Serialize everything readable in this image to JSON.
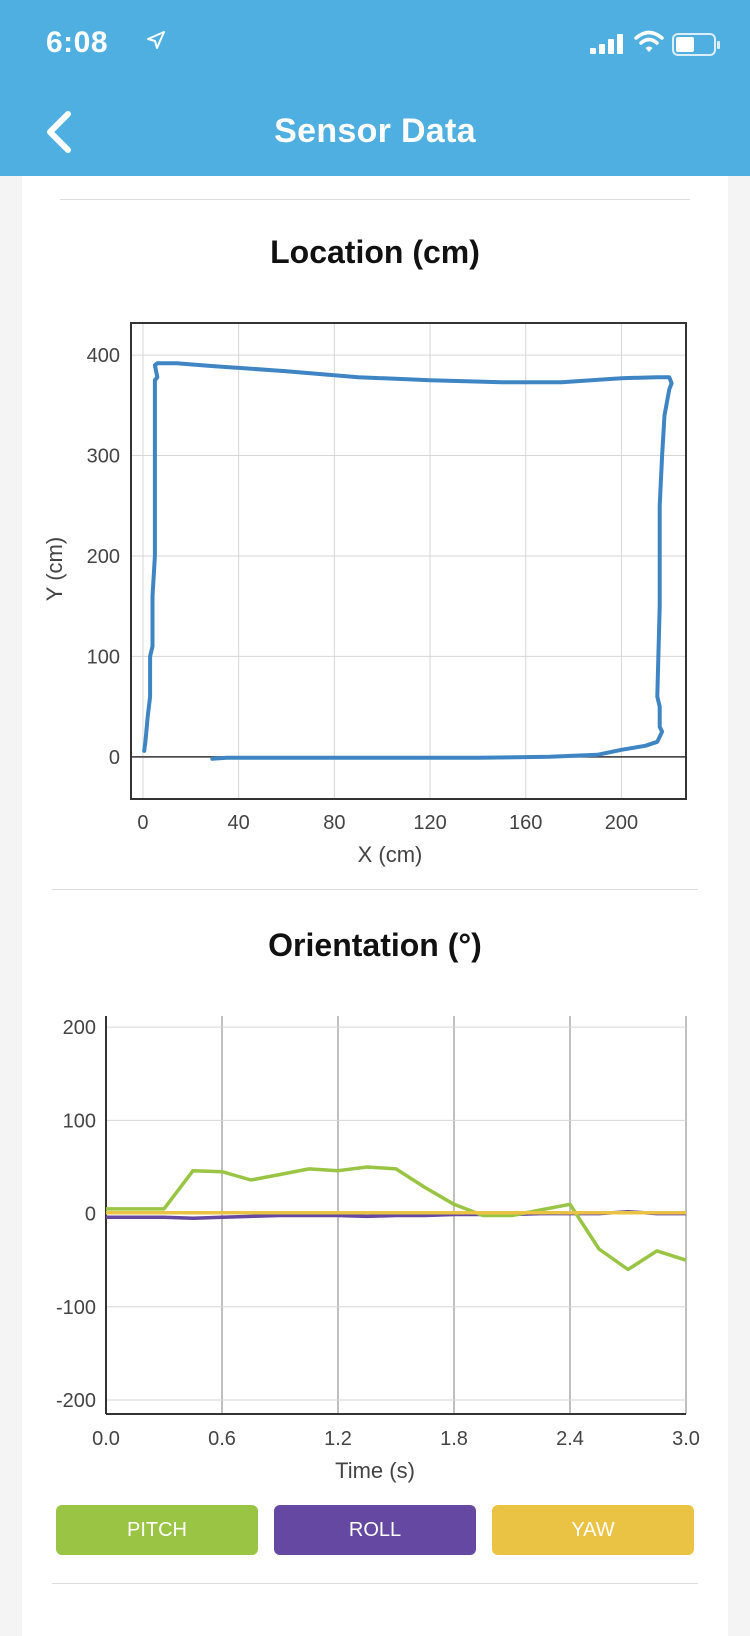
{
  "status_bar": {
    "time": "6:08",
    "icons": [
      "location-arrow-icon",
      "signal-icon",
      "wifi-icon",
      "battery-icon"
    ]
  },
  "header": {
    "title": "Sensor Data",
    "back_icon": "chevron-left-icon",
    "color": "#4fafe0"
  },
  "location": {
    "title": "Location (cm)",
    "xlabel": "X (cm)",
    "ylabel": "Y (cm)",
    "xticks": [
      "0",
      "40",
      "80",
      "120",
      "160",
      "200"
    ],
    "yticks": [
      "400",
      "300",
      "200",
      "100",
      "0"
    ]
  },
  "orientation": {
    "title": "Orientation (°)",
    "xlabel": "Time (s)",
    "xticks": [
      "0.0",
      "0.6",
      "1.2",
      "1.8",
      "2.4",
      "3.0"
    ],
    "yticks": [
      "200",
      "100",
      "0",
      "-100",
      "-200"
    ],
    "buttons": {
      "pitch": "PITCH",
      "roll": "ROLL",
      "yaw": "YAW"
    }
  },
  "colors": {
    "pitch": "#99c444",
    "roll": "#6448a2",
    "yaw": "#ebc344",
    "location_line": "#3f85c3"
  },
  "chart_data": [
    {
      "type": "line",
      "title": "Location (cm)",
      "xlabel": "X (cm)",
      "ylabel": "Y (cm)",
      "xlim": [
        -5,
        227
      ],
      "ylim": [
        -42,
        432
      ],
      "grid": true,
      "series": [
        {
          "x": [
            29,
            35,
            57,
            100,
            140,
            170,
            190,
            200,
            210,
            215,
            217,
            216,
            216,
            215,
            216,
            216,
            216,
            217,
            218,
            220,
            221,
            220,
            215,
            200,
            175,
            150,
            120,
            90,
            60,
            30,
            14,
            6,
            5,
            6,
            5,
            5,
            5,
            5,
            4,
            4,
            3,
            3,
            2,
            1,
            0.5
          ],
          "y": [
            -2,
            -1,
            -1,
            -1,
            -1,
            0,
            2,
            7,
            11,
            15,
            25,
            30,
            50,
            60,
            150,
            170,
            250,
            300,
            340,
            366,
            372,
            378,
            378,
            377,
            373,
            373,
            375,
            378,
            384,
            389,
            392,
            392,
            390,
            378,
            375,
            330,
            300,
            200,
            160,
            110,
            100,
            60,
            40,
            15,
            6
          ]
        }
      ]
    },
    {
      "type": "line",
      "title": "Orientation (°)",
      "xlabel": "Time (s)",
      "ylabel": "",
      "xlim": [
        0,
        3.0
      ],
      "ylim": [
        -215,
        212
      ],
      "grid": true,
      "x": [
        0.0,
        0.15,
        0.3,
        0.45,
        0.6,
        0.75,
        0.9,
        1.05,
        1.2,
        1.35,
        1.5,
        1.65,
        1.8,
        1.95,
        2.1,
        2.25,
        2.4,
        2.55,
        2.7,
        2.85,
        3.0
      ],
      "series": [
        {
          "name": "PITCH",
          "values": [
            5,
            5,
            5,
            46,
            45,
            36,
            42,
            48,
            46,
            50,
            48,
            28,
            10,
            -2,
            -2,
            4,
            10,
            -38,
            -60,
            -40,
            -50
          ]
        },
        {
          "name": "ROLL",
          "values": [
            -4,
            -4,
            -4,
            -5,
            -4,
            -3,
            -2,
            -2,
            -2,
            -3,
            -2,
            -2,
            -1,
            -1,
            -1,
            0,
            0,
            0,
            2,
            0,
            0
          ]
        },
        {
          "name": "YAW",
          "values": [
            1,
            1,
            1,
            1,
            1,
            1,
            1,
            1,
            1,
            1,
            1,
            1,
            1,
            1,
            1,
            1,
            1,
            1,
            1,
            1,
            1
          ]
        }
      ]
    }
  ]
}
